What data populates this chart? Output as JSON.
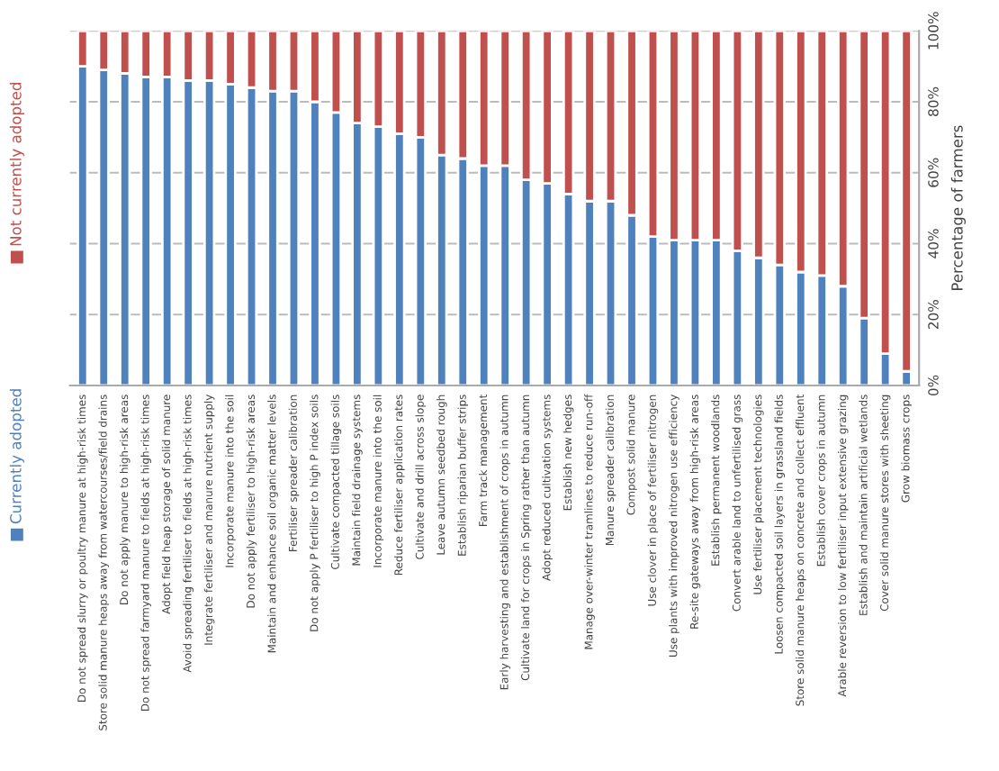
{
  "chart_data": {
    "type": "bar",
    "stacked": true,
    "categories": [
      "Do not spread slurry or poultry manure at high-risk times",
      "Store solid manure heaps away from watercourses/field drains",
      "Do not apply manure to high-risk areas",
      "Do not spread farmyard manure to fields at high-risk times",
      "Adopt field heap storage of solid manure",
      "Avoid spreading fertiliser to fields at high-risk times",
      "Integrate fertiliser and manure nutrient supply",
      "Incorporate manure into the soil",
      "Do not apply fertiliser to high-risk areas",
      "Maintain and enhance soil organic matter levels",
      "Fertiliser spreader calibration",
      "Do not apply P fertiliser to high P index soils",
      "Cultivate compacted tillage soils",
      "Maintain field drainage systems",
      "Incorporate manure into the soil",
      "Reduce fertiliser application rates",
      "Cultivate and drill across slope",
      "Leave autumn seedbed rough",
      "Establish riparian buffer strips",
      "Farm track management",
      "Early harvesting and establishment of crops in autumn",
      "Cultivate land for crops in Spring rather than autumn",
      "Adopt reduced cultivation systems",
      "Establish new hedges",
      "Manage over-winter tramlines to reduce run-off",
      "Manure spreader calibration",
      "Compost solid manure",
      "Use clover in place of fertiliser nitrogen",
      "Use plants with improved nitrogen use efficiency",
      "Re-site gateways away from high-risk areas",
      "Establish permanent woodlands",
      "Convert arable land to unfertilised grass",
      "Use fertiliser placement technologies",
      "Loosen compacted soil layers in grassland fields",
      "Store solid manure heaps on concrete and collect effluent",
      "Establish cover crops in autumn",
      "Arable reversion to low fertiliser input extensive grazing",
      "Establish and maintain artificial wetlands",
      "Cover solid manure stores with sheeting",
      "Grow biomass crops"
    ],
    "series": [
      {
        "name": "Currently adopted",
        "color": "#4f81bd",
        "values": [
          90,
          89,
          88,
          87,
          87,
          86,
          86,
          85,
          84,
          83,
          83,
          80,
          77,
          74,
          73,
          71,
          70,
          65,
          64,
          62,
          62,
          58,
          57,
          54,
          52,
          52,
          48,
          42,
          41,
          41,
          41,
          38,
          36,
          34,
          32,
          31,
          28,
          19,
          9,
          4
        ]
      },
      {
        "name": "Not currently adopted",
        "color": "#c0504d",
        "values": [
          10,
          11,
          12,
          13,
          13,
          14,
          14,
          15,
          16,
          17,
          17,
          20,
          23,
          26,
          27,
          29,
          30,
          35,
          36,
          38,
          38,
          42,
          43,
          46,
          48,
          48,
          52,
          58,
          59,
          59,
          59,
          62,
          64,
          66,
          68,
          69,
          72,
          81,
          91,
          96
        ]
      }
    ],
    "ylabel": "Percentage of farmers",
    "ylim": [
      0,
      100
    ],
    "yticks": [
      {
        "value": 0,
        "label": "0%"
      },
      {
        "value": 20,
        "label": "20%"
      },
      {
        "value": 40,
        "label": "40%"
      },
      {
        "value": 60,
        "label": "60%"
      },
      {
        "value": 80,
        "label": "80%"
      },
      {
        "value": 100,
        "label": "100%"
      }
    ],
    "grid": "y",
    "legend": "left"
  }
}
